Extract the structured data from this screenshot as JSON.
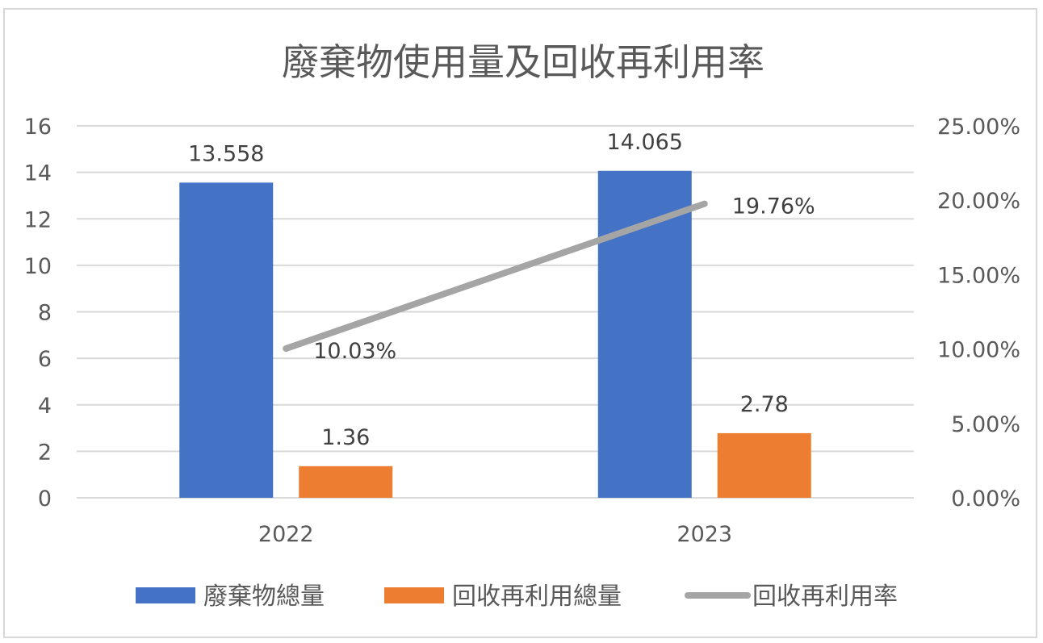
{
  "chart_data": {
    "type": "bar",
    "title": "廢棄物使用量及回收再利用率",
    "categories": [
      "2022",
      "2023"
    ],
    "y_left": {
      "min": 0,
      "max": 16,
      "step": 2,
      "ticks": [
        "0",
        "2",
        "4",
        "6",
        "8",
        "10",
        "12",
        "14",
        "16"
      ]
    },
    "y_right": {
      "min": 0,
      "max": 0.25,
      "step": 0.05,
      "ticks": [
        "0.00%",
        "5.00%",
        "10.00%",
        "15.00%",
        "20.00%",
        "25.00%"
      ]
    },
    "series": [
      {
        "name": "廢棄物總量",
        "kind": "bar",
        "axis": "left",
        "color": "#4472c4",
        "values": [
          13.558,
          14.065
        ],
        "labels": [
          "13.558",
          "14.065"
        ]
      },
      {
        "name": "回收再利用總量",
        "kind": "bar",
        "axis": "left",
        "color": "#ed7d31",
        "values": [
          1.36,
          2.78
        ],
        "labels": [
          "1.36",
          "2.78"
        ]
      },
      {
        "name": "回收再利用率",
        "kind": "line",
        "axis": "right",
        "color": "#a5a5a5",
        "values": [
          0.1003,
          0.1976
        ],
        "labels": [
          "10.03%",
          "19.76%"
        ]
      }
    ],
    "grid": true,
    "legend_position": "bottom",
    "gridline_color": "#d9d9d9"
  }
}
